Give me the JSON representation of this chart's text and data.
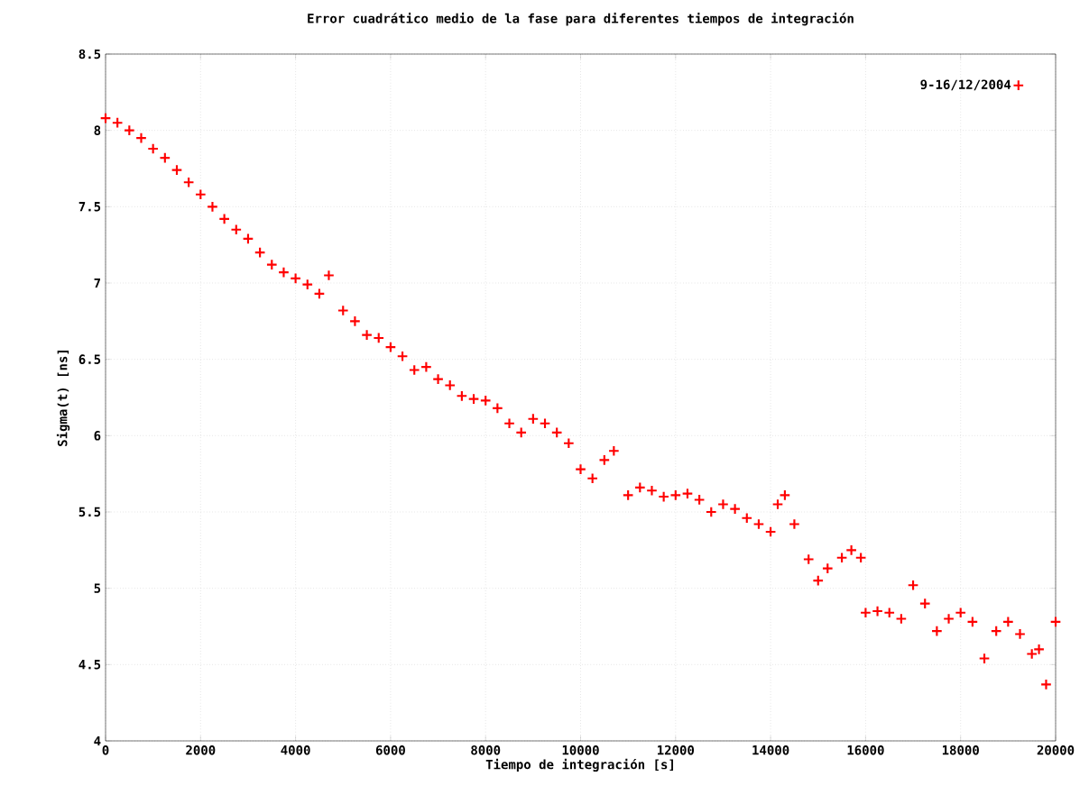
{
  "chart_data": {
    "type": "scatter",
    "title": "Error cuadrático medio de la fase para diferentes tiempos de integración",
    "xlabel": "Tiempo de integración [s]",
    "ylabel": "Sigma(t) [ns]",
    "x": [
      0,
      250,
      500,
      750,
      1000,
      1250,
      1500,
      1750,
      2000,
      2250,
      2500,
      2750,
      3000,
      3250,
      3500,
      3750,
      4000,
      4250,
      4500,
      4700,
      5000,
      5250,
      5500,
      5750,
      6000,
      6250,
      6500,
      6750,
      7000,
      7250,
      7500,
      7750,
      8000,
      8250,
      8500,
      8750,
      9000,
      9250,
      9500,
      9750,
      10000,
      10250,
      10500,
      10700,
      11000,
      11250,
      11500,
      11750,
      12000,
      12250,
      12500,
      12750,
      13000,
      13250,
      13500,
      13750,
      14000,
      14150,
      14300,
      14500,
      14800,
      15000,
      15200,
      15500,
      15700,
      15900,
      16000,
      16250,
      16500,
      16750,
      17000,
      17250,
      17500,
      17750,
      18000,
      18250,
      18500,
      18750,
      19000,
      19250,
      19500,
      19650,
      19800,
      20000
    ],
    "series": [
      {
        "name": "9-16/12/2004",
        "color": "#ff0000",
        "values": [
          8.08,
          8.05,
          8.0,
          7.95,
          7.88,
          7.82,
          7.74,
          7.66,
          7.58,
          7.5,
          7.42,
          7.35,
          7.29,
          7.2,
          7.12,
          7.07,
          7.03,
          6.99,
          6.93,
          7.05,
          6.82,
          6.75,
          6.66,
          6.64,
          6.58,
          6.52,
          6.43,
          6.45,
          6.37,
          6.33,
          6.26,
          6.24,
          6.23,
          6.18,
          6.08,
          6.02,
          6.11,
          6.08,
          6.02,
          5.95,
          5.78,
          5.72,
          5.84,
          5.9,
          5.61,
          5.66,
          5.64,
          5.6,
          5.61,
          5.62,
          5.58,
          5.5,
          5.55,
          5.52,
          5.46,
          5.42,
          5.37,
          5.55,
          5.61,
          5.42,
          5.19,
          5.05,
          5.13,
          5.2,
          5.25,
          5.2,
          4.84,
          4.85,
          4.84,
          4.8,
          5.02,
          4.9,
          4.72,
          4.8,
          4.84,
          4.78,
          4.54,
          4.72,
          4.78,
          4.7,
          4.57,
          4.6,
          4.37,
          4.78
        ]
      }
    ],
    "xlim": [
      0,
      20000
    ],
    "ylim": [
      4,
      8.5
    ],
    "xticks": [
      0,
      2000,
      4000,
      6000,
      8000,
      10000,
      12000,
      14000,
      16000,
      18000,
      20000
    ],
    "yticks": [
      4,
      4.5,
      5,
      5.5,
      6,
      6.5,
      7,
      7.5,
      8,
      8.5
    ],
    "grid": true,
    "legend": "top right",
    "marker": "cross"
  }
}
